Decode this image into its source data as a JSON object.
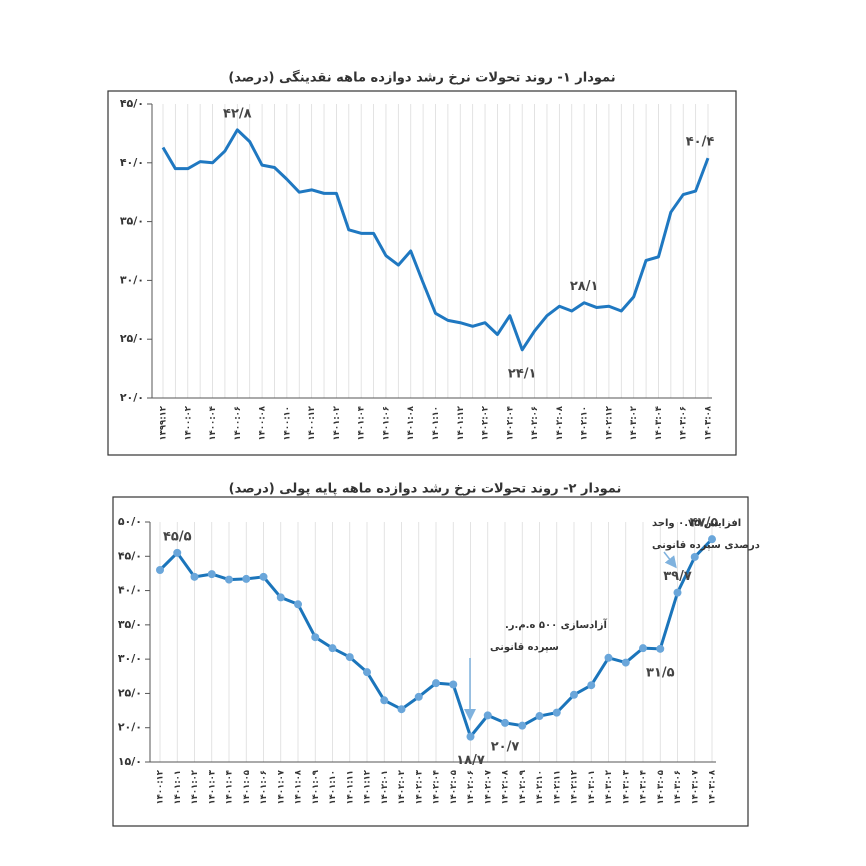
{
  "chart_data": [
    {
      "type": "line",
      "title": "نمودار ۱- روند تحولات نرخ رشد دوازده ماهه نقدینگی (درصد)",
      "categories": [
        "۱۳۹۹:۱۲",
        null,
        "۱۴۰۰:۰۲",
        null,
        "۱۴۰۰:۰۴",
        null,
        "۱۴۰۰:۰۶",
        null,
        "۱۴۰۰:۰۸",
        null,
        "۱۴۰۰:۱۰",
        null,
        "۱۴۰۰:۱۲",
        null,
        "۱۴۰۱:۰۲",
        null,
        "۱۴۰۱:۰۴",
        null,
        "۱۴۰۱:۰۶",
        null,
        "۱۴۰۱:۰۸",
        null,
        "۱۴۰۱:۱۰",
        null,
        "۱۴۰۱:۱۲",
        null,
        "۱۴۰۲:۰۲",
        null,
        "۱۴۰۲:۰۴",
        null,
        "۱۴۰۲:۰۶",
        null,
        "۱۴۰۲:۰۸",
        null,
        "۱۴۰۲:۱۰",
        null,
        "۱۴۰۲:۱۲",
        null,
        "۱۴۰۳:۰۲",
        null,
        "۱۴۰۳:۰۴",
        null,
        "۱۴۰۳:۰۶",
        null,
        "۱۴۰۳:۰۸"
      ],
      "values": [
        41.3,
        39.5,
        39.5,
        40.1,
        40.0,
        41.0,
        42.8,
        41.8,
        39.8,
        39.6,
        38.6,
        37.5,
        37.7,
        37.4,
        37.4,
        34.3,
        34.0,
        34.0,
        32.1,
        31.3,
        32.5,
        29.8,
        27.2,
        26.6,
        26.4,
        26.1,
        26.4,
        25.4,
        27.0,
        24.1,
        25.7,
        27.0,
        27.8,
        27.4,
        28.1,
        27.7,
        27.8,
        27.4,
        28.6,
        31.7,
        32.0,
        35.8,
        37.3,
        37.6,
        40.4
      ],
      "value_labels": [
        null,
        null,
        null,
        null,
        null,
        null,
        "۴۲/۸",
        null,
        null,
        null,
        null,
        null,
        null,
        null,
        null,
        null,
        null,
        null,
        null,
        null,
        null,
        null,
        null,
        null,
        null,
        null,
        null,
        null,
        null,
        "۲۴/۱",
        null,
        null,
        null,
        null,
        "۲۸/۱",
        null,
        null,
        null,
        null,
        null,
        null,
        null,
        null,
        null,
        "۴۰/۴"
      ],
      "color": "#1f78c1",
      "markers": false,
      "ylim": [
        20,
        45
      ],
      "yticks": [
        {
          "value": 20,
          "label": "۲۰/۰"
        },
        {
          "value": 25,
          "label": "۲۵/۰"
        },
        {
          "value": 30,
          "label": "۳۰/۰"
        },
        {
          "value": 35,
          "label": "۳۵/۰"
        },
        {
          "value": 40,
          "label": "۴۰/۰"
        },
        {
          "value": 45,
          "label": "۴۵/۰"
        }
      ],
      "grid": true
    },
    {
      "type": "line",
      "title": "نمودار ۲- روند تحولات نرخ رشد دوازده ماهه پایه پولی (درصد)",
      "categories": [
        "۱۴۰۰:۱۲",
        "۱۴۰۱:۰۱",
        "۱۴۰۱:۰۲",
        "۱۴۰۱:۰۳",
        "۱۴۰۱:۰۴",
        "۱۴۰۱:۰۵",
        "۱۴۰۱:۰۶",
        "۱۴۰۱:۰۷",
        "۱۴۰۱:۰۸",
        "۱۴۰۱:۰۹",
        "۱۴۰۱:۱۰",
        "۱۴۰۱:۱۱",
        "۱۴۰۱:۱۲",
        "۱۴۰۲:۰۱",
        "۱۴۰۲:۰۲",
        "۱۴۰۲:۰۳",
        "۱۴۰۲:۰۴",
        "۱۴۰۲:۰۵",
        "۱۴۰۲:۰۶",
        "۱۴۰۲:۰۷",
        "۱۴۰۲:۰۸",
        "۱۴۰۲:۰۹",
        "۱۴۰۲:۱۰",
        "۱۴۰۲:۱۱",
        "۱۴۰۲:۱۲",
        "۱۴۰۳:۰۱",
        "۱۴۰۳:۰۲",
        "۱۴۰۳:۰۳",
        "۱۴۰۳:۰۴",
        "۱۴۰۳:۰۵",
        "۱۴۰۳:۰۶",
        "۱۴۰۳:۰۷",
        "۱۴۰۳:۰۸"
      ],
      "values": [
        43.0,
        45.5,
        42.0,
        42.4,
        41.6,
        41.7,
        42.0,
        39.0,
        38.0,
        33.2,
        31.6,
        30.3,
        28.1,
        24.0,
        22.7,
        24.5,
        26.5,
        26.3,
        18.7,
        21.8,
        20.7,
        20.3,
        21.7,
        22.2,
        24.8,
        26.2,
        30.2,
        29.5,
        31.6,
        31.5,
        39.7,
        44.9,
        47.5
      ],
      "value_labels": [
        null,
        "۴۵/۵",
        null,
        null,
        null,
        null,
        null,
        null,
        null,
        null,
        null,
        null,
        null,
        null,
        null,
        null,
        null,
        null,
        "۱۸/۷",
        null,
        "۲۰/۷",
        null,
        null,
        null,
        null,
        null,
        null,
        null,
        null,
        "۳۱/۵",
        "۳۹/۷",
        null,
        "۴۷/۵"
      ],
      "color": "#1b75bb",
      "markers": true,
      "marker_color": "#6aa6da",
      "ylim": [
        15,
        50
      ],
      "yticks": [
        {
          "value": 15,
          "label": "۱۵/۰"
        },
        {
          "value": 20,
          "label": "۲۰/۰"
        },
        {
          "value": 25,
          "label": "۲۵/۰"
        },
        {
          "value": 30,
          "label": "۳۰/۰"
        },
        {
          "value": 35,
          "label": "۳۵/۰"
        },
        {
          "value": 40,
          "label": "۴۰/۰"
        },
        {
          "value": 45,
          "label": "۴۵/۰"
        },
        {
          "value": 50,
          "label": "۵۰/۰"
        }
      ],
      "grid": true,
      "annotations": [
        [
          "آزادسازی ۵۰۰ ه.م.ر.",
          "سپرده قانونی"
        ],
        [
          "افزایش ۰.۷۵ واحد",
          "درصدی سپرده قانونی"
        ]
      ]
    }
  ]
}
